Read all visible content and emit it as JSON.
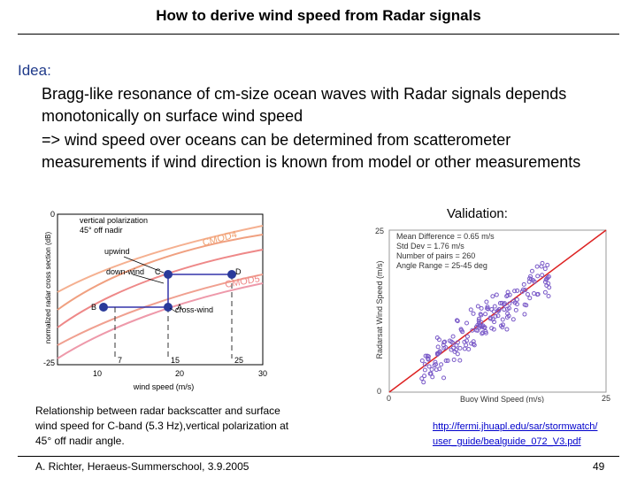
{
  "header": {
    "title": "How to derive wind speed from Radar signals"
  },
  "body": {
    "heading": "Idea:",
    "points": [
      "Bragg-like resonance of cm-size ocean waves with Radar signals depends monotonically on surface wind speed",
      "=> wind speed over oceans can be determined from scatterometer measurements if wind direction is known from model or other measurements"
    ]
  },
  "figure_left": {
    "legend": [
      "vertical polarization",
      "45° off nadir"
    ],
    "curves": [
      "CMOD4",
      "CMOD5"
    ],
    "directions": [
      "upwind",
      "down-wind",
      "cross-wind"
    ],
    "points": [
      "C",
      "D",
      "B",
      "A"
    ],
    "y_label": "normalized radar cross section (dB)",
    "y_ticks": [
      "0",
      "-25"
    ],
    "x_ticks": [
      "10",
      "20",
      "30"
    ],
    "markers": [
      "7",
      "15",
      "25"
    ],
    "x_label": "wind speed (m/s)",
    "caption": "Relationship between radar backscatter and surface wind speed for C-band (5.3 Hz),vertical polarization at 45° off nadir angle."
  },
  "figure_right": {
    "heading": "Validation:",
    "stats": [
      "Mean Difference = 0.65 m/s",
      "Std Dev = 1.76 m/s",
      "Number of pairs = 260",
      "Angle Range = 25-45 deg"
    ],
    "y_label": "Radarsat Wind Speed (m/s)",
    "y_ticks": [
      "25",
      "0"
    ],
    "x_ticks": [
      "0",
      "25"
    ],
    "x_label": "Buoy Wind Speed (m/s)",
    "link": [
      "http://fermi.jhuapl.edu/sar/stormwatch/",
      "user_guide/bealguide_072_V3.pdf"
    ]
  },
  "footer": {
    "author": "A. Richter, Heraeus-Summerschool, 3.9.2005",
    "page": "49"
  }
}
